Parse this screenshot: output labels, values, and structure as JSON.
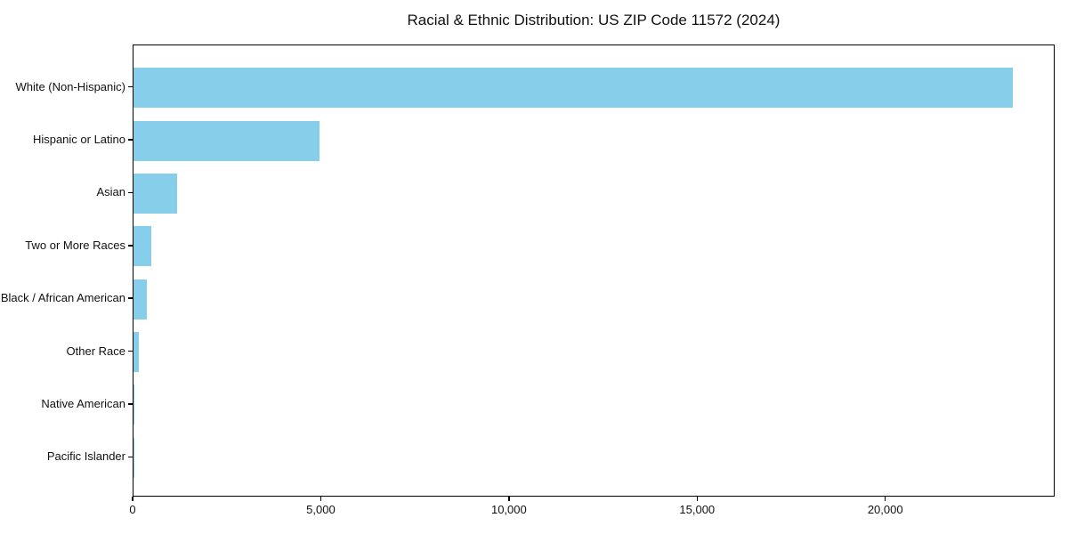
{
  "title": "Racial & Ethnic Distribution: US ZIP Code 11572 (2024)",
  "colors": {
    "bar": "#87CEEB",
    "axis": "#000000",
    "background": "#ffffff",
    "text": "#111111"
  },
  "chart_data": {
    "type": "bar",
    "orientation": "horizontal",
    "title": "Racial & Ethnic Distribution: US ZIP Code 11572 (2024)",
    "xlabel": "",
    "ylabel": "",
    "categories": [
      "White (Non-Hispanic)",
      "Hispanic or Latino",
      "Asian",
      "Two or More Races",
      "Black / African American",
      "Other Race",
      "Native American",
      "Pacific Islander"
    ],
    "values": [
      23400,
      4960,
      1160,
      480,
      360,
      140,
      15,
      5
    ],
    "xlim": [
      0,
      24500
    ],
    "xticks": [
      0,
      5000,
      10000,
      15000,
      20000
    ],
    "xtick_labels": [
      "0",
      "5,000",
      "10,000",
      "15,000",
      "20,000"
    ],
    "grid": false,
    "legend": null,
    "bar_color": "#87CEEB"
  }
}
